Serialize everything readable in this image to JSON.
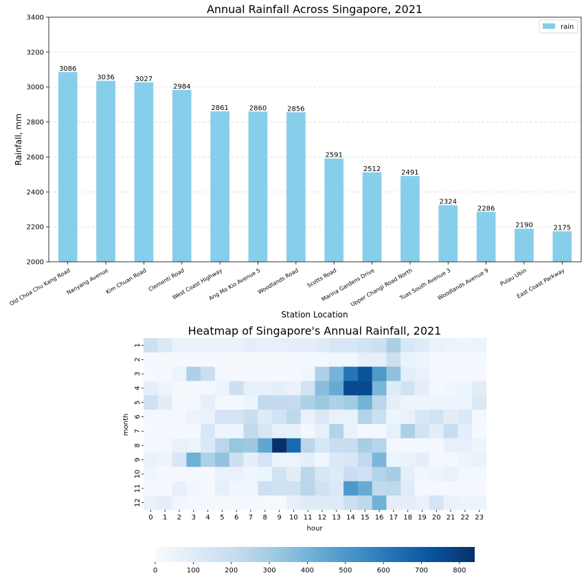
{
  "chart_data": [
    {
      "type": "bar",
      "title": "Annual Rainfall Across Singapore, 2021",
      "xlabel": "Station Location",
      "ylabel": "Rainfall, mm",
      "ylim": [
        2000,
        3400
      ],
      "yticks": [
        2000,
        2200,
        2400,
        2600,
        2800,
        3000,
        3200,
        3400
      ],
      "grid": "y-dashed",
      "legend": {
        "placement": "top-right",
        "entries": [
          "rain"
        ]
      },
      "categories": [
        "Old Choa Chu Kang Road",
        "Nanyang Avenue",
        "Kim Chuan Road",
        "Clementi Road",
        "West Coast Highway",
        "Ang Mo Kio Avenue 5",
        "Woodlands Road",
        "Scotts Road",
        "Marina Gardens Drive",
        "Upper Changi Road North",
        "Tuas South Avenue 3",
        "Woodlands Avenue 9",
        "Pulau Ubin",
        "East Coast Parkway"
      ],
      "series": [
        {
          "name": "rain",
          "color": "#87ceeb",
          "values": [
            3086,
            3036,
            3027,
            2984,
            2861,
            2860,
            2856,
            2591,
            2512,
            2491,
            2324,
            2286,
            2190,
            2175
          ]
        }
      ]
    },
    {
      "type": "heatmap",
      "title": "Heatmap of Singapore's Annual Rainfall, 2021",
      "xlabel": "hour",
      "ylabel": "month",
      "x": [
        0,
        1,
        2,
        3,
        4,
        5,
        6,
        7,
        8,
        9,
        10,
        11,
        12,
        13,
        14,
        15,
        16,
        17,
        18,
        19,
        20,
        21,
        22,
        23
      ],
      "y": [
        1,
        2,
        3,
        4,
        5,
        6,
        7,
        8,
        9,
        10,
        11,
        12
      ],
      "colormap": "Blues",
      "vmin": 0,
      "vmax": 840,
      "colorbar_ticks": [
        0,
        100,
        200,
        300,
        400,
        500,
        600,
        700,
        800
      ],
      "colorbar_placement": "bottom",
      "values": [
        [
          180,
          120,
          60,
          60,
          60,
          60,
          60,
          80,
          70,
          70,
          80,
          80,
          100,
          140,
          140,
          160,
          180,
          280,
          130,
          100,
          60,
          50,
          40,
          50
        ],
        [
          10,
          10,
          10,
          10,
          10,
          10,
          10,
          10,
          10,
          10,
          20,
          20,
          20,
          30,
          30,
          70,
          80,
          180,
          60,
          40,
          20,
          20,
          20,
          20
        ],
        [
          10,
          10,
          50,
          270,
          190,
          20,
          10,
          10,
          10,
          10,
          10,
          30,
          270,
          400,
          620,
          730,
          500,
          350,
          80,
          60,
          20,
          20,
          10,
          10
        ],
        [
          80,
          40,
          10,
          10,
          20,
          40,
          180,
          70,
          70,
          80,
          60,
          160,
          360,
          430,
          760,
          760,
          390,
          100,
          160,
          80,
          20,
          30,
          40,
          90
        ],
        [
          170,
          90,
          20,
          20,
          80,
          20,
          20,
          40,
          220,
          220,
          210,
          270,
          320,
          270,
          310,
          400,
          240,
          80,
          40,
          40,
          40,
          40,
          40,
          120
        ],
        [
          20,
          20,
          20,
          50,
          60,
          150,
          150,
          190,
          100,
          160,
          230,
          60,
          120,
          60,
          60,
          260,
          180,
          40,
          60,
          130,
          160,
          90,
          120,
          20
        ],
        [
          10,
          10,
          10,
          20,
          130,
          40,
          40,
          220,
          140,
          70,
          70,
          20,
          70,
          260,
          60,
          20,
          20,
          70,
          280,
          160,
          90,
          200,
          80,
          10
        ],
        [
          20,
          20,
          60,
          50,
          120,
          240,
          330,
          320,
          450,
          840,
          660,
          240,
          130,
          200,
          200,
          290,
          250,
          20,
          20,
          20,
          20,
          70,
          70,
          40
        ],
        [
          60,
          40,
          130,
          410,
          270,
          340,
          180,
          80,
          150,
          50,
          50,
          80,
          30,
          120,
          130,
          220,
          390,
          40,
          60,
          80,
          20,
          20,
          40,
          60
        ],
        [
          30,
          10,
          10,
          10,
          10,
          60,
          60,
          30,
          40,
          160,
          90,
          240,
          130,
          110,
          190,
          170,
          260,
          290,
          80,
          30,
          40,
          60,
          20,
          20
        ],
        [
          20,
          10,
          70,
          30,
          10,
          80,
          30,
          30,
          180,
          170,
          170,
          240,
          170,
          120,
          500,
          430,
          220,
          230,
          100,
          20,
          20,
          20,
          20,
          10
        ],
        [
          60,
          80,
          30,
          20,
          20,
          10,
          20,
          20,
          10,
          10,
          70,
          100,
          100,
          110,
          180,
          230,
          410,
          80,
          80,
          60,
          150,
          60,
          40,
          40
        ]
      ]
    }
  ]
}
